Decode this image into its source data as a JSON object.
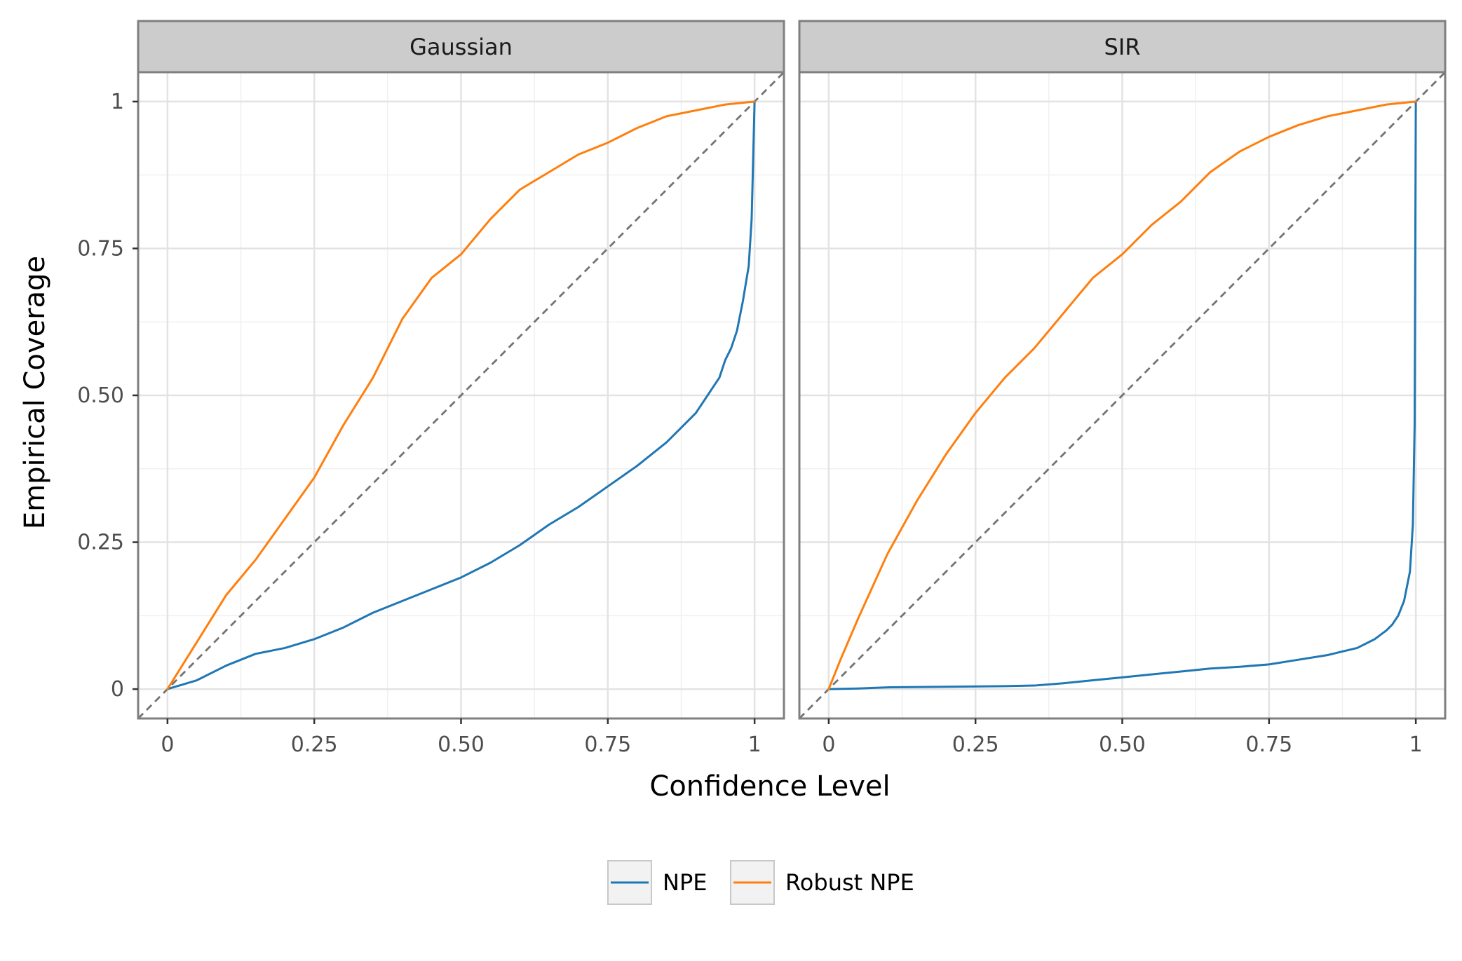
{
  "chart_data": {
    "type": "line",
    "xlabel": "Confidence Level",
    "ylabel": "Empirical Coverage",
    "xlim": [
      0,
      1
    ],
    "ylim": [
      0,
      1
    ],
    "x_ticks": [
      "0",
      "0.25",
      "0.50",
      "0.75",
      "1"
    ],
    "y_ticks": [
      "0",
      "0.25",
      "0.50",
      "0.75",
      "1"
    ],
    "grid": true,
    "reference_line": "y = x (dashed)",
    "legend": {
      "position": "bottom",
      "entries": [
        {
          "label": "NPE",
          "color": "#1f77b4"
        },
        {
          "label": "Robust NPE",
          "color": "#ff7f0e"
        }
      ]
    },
    "panels": [
      {
        "title": "Gaussian",
        "series": [
          {
            "name": "NPE",
            "color": "#1f77b4",
            "x": [
              0,
              0.05,
              0.1,
              0.15,
              0.2,
              0.25,
              0.3,
              0.35,
              0.4,
              0.45,
              0.5,
              0.55,
              0.6,
              0.65,
              0.7,
              0.75,
              0.8,
              0.85,
              0.9,
              0.92,
              0.94,
              0.95,
              0.96,
              0.97,
              0.98,
              0.99,
              0.995,
              1.0
            ],
            "y": [
              0,
              0.015,
              0.04,
              0.06,
              0.07,
              0.085,
              0.105,
              0.13,
              0.15,
              0.17,
              0.19,
              0.215,
              0.245,
              0.28,
              0.31,
              0.345,
              0.38,
              0.42,
              0.47,
              0.5,
              0.53,
              0.56,
              0.58,
              0.61,
              0.66,
              0.72,
              0.8,
              1.0
            ]
          },
          {
            "name": "Robust NPE",
            "color": "#ff7f0e",
            "x": [
              0,
              0.05,
              0.1,
              0.15,
              0.2,
              0.25,
              0.3,
              0.35,
              0.4,
              0.45,
              0.5,
              0.55,
              0.6,
              0.65,
              0.7,
              0.75,
              0.8,
              0.85,
              0.9,
              0.95,
              1.0
            ],
            "y": [
              0,
              0.08,
              0.16,
              0.22,
              0.29,
              0.36,
              0.45,
              0.53,
              0.63,
              0.7,
              0.74,
              0.8,
              0.85,
              0.88,
              0.91,
              0.93,
              0.955,
              0.975,
              0.985,
              0.995,
              1.0
            ]
          }
        ]
      },
      {
        "title": "SIR",
        "series": [
          {
            "name": "NPE",
            "color": "#1f77b4",
            "x": [
              0,
              0.05,
              0.1,
              0.2,
              0.3,
              0.35,
              0.4,
              0.45,
              0.5,
              0.55,
              0.6,
              0.65,
              0.7,
              0.75,
              0.8,
              0.85,
              0.9,
              0.93,
              0.95,
              0.96,
              0.97,
              0.98,
              0.99,
              0.995,
              0.998,
              1.0
            ],
            "y": [
              0,
              0.001,
              0.003,
              0.004,
              0.005,
              0.006,
              0.01,
              0.015,
              0.02,
              0.025,
              0.03,
              0.035,
              0.038,
              0.042,
              0.05,
              0.058,
              0.07,
              0.085,
              0.1,
              0.11,
              0.125,
              0.15,
              0.2,
              0.28,
              0.45,
              1.0
            ]
          },
          {
            "name": "Robust NPE",
            "color": "#ff7f0e",
            "x": [
              0,
              0.02,
              0.05,
              0.1,
              0.15,
              0.2,
              0.25,
              0.3,
              0.35,
              0.4,
              0.45,
              0.5,
              0.55,
              0.6,
              0.65,
              0.7,
              0.75,
              0.8,
              0.85,
              0.9,
              0.95,
              1.0
            ],
            "y": [
              0,
              0.05,
              0.12,
              0.23,
              0.32,
              0.4,
              0.47,
              0.53,
              0.58,
              0.64,
              0.7,
              0.74,
              0.79,
              0.83,
              0.88,
              0.915,
              0.94,
              0.96,
              0.975,
              0.985,
              0.995,
              1.0
            ]
          }
        ]
      }
    ]
  }
}
